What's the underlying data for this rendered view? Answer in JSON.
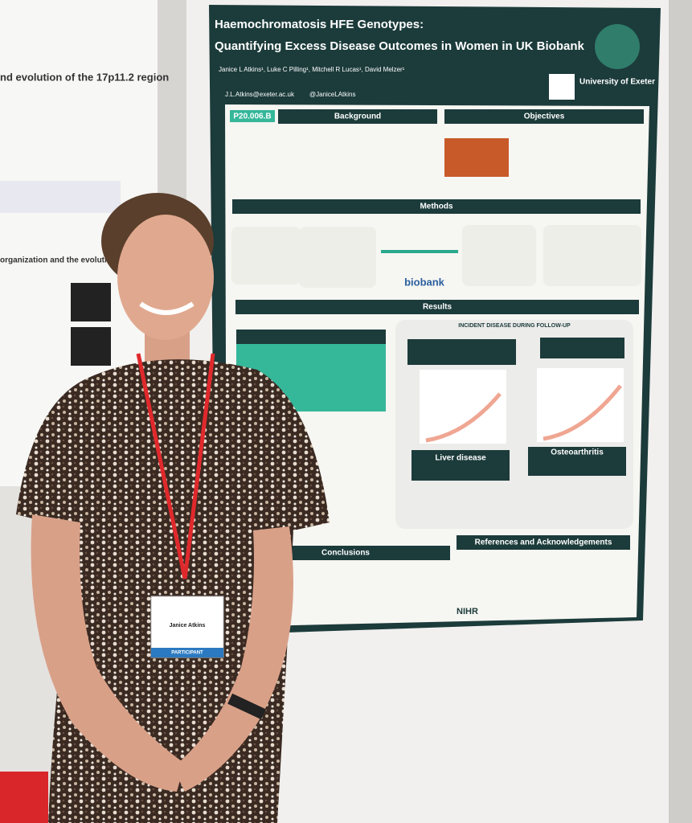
{
  "left_poster": {
    "title": "nd evolution of the 17p11.2 region",
    "subtitle": "organization and the evolution of th"
  },
  "poster": {
    "code": "P20.006.B",
    "title_line_1": "Haemochromatosis HFE Genotypes:",
    "title_line_2": "Quantifying Excess Disease Outcomes in Women in UK Biobank",
    "authors": "Janice L Atkins¹, Luke C Pilling¹, Mitchell R Lucas¹, David Melzer¹",
    "email": "J.L.Atkins@exeter.ac.uk",
    "twitter": "@JaniceLAtkins",
    "institution": "University of Exeter",
    "sections": [
      "Background",
      "Objectives",
      "Methods",
      "Results",
      "Conclusions",
      "References and Acknowledgements"
    ],
    "results_heading": "INCIDENT DISEASE DURING FOLLOW-UP",
    "panels": [
      "Liver disease",
      "Osteoarthritis"
    ],
    "logos": [
      "biobank",
      "NIHR"
    ]
  },
  "badge": {
    "name": "Janice Atkins",
    "role": "PARTICIPANT"
  }
}
